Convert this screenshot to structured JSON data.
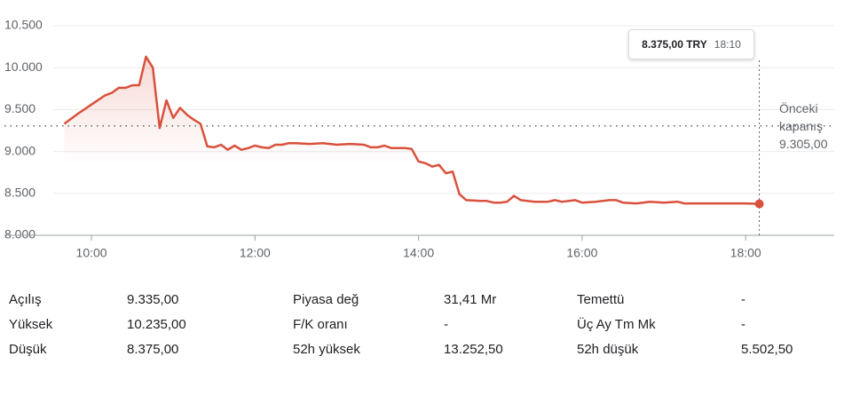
{
  "chart_data": {
    "type": "line",
    "color": "#d9513d",
    "x": [
      "09:40",
      "09:50",
      "10:00",
      "10:10",
      "10:15",
      "10:20",
      "10:25",
      "10:30",
      "10:35",
      "10:40",
      "10:45",
      "10:50",
      "10:55",
      "11:00",
      "11:05",
      "11:10",
      "11:15",
      "11:20",
      "11:25",
      "11:30",
      "11:35",
      "11:40",
      "11:45",
      "11:50",
      "11:55",
      "12:00",
      "12:05",
      "12:10",
      "12:15",
      "12:20",
      "12:25",
      "12:30",
      "12:40",
      "12:50",
      "13:00",
      "13:10",
      "13:20",
      "13:25",
      "13:30",
      "13:35",
      "13:40",
      "13:50",
      "13:55",
      "14:00",
      "14:05",
      "14:10",
      "14:15",
      "14:20",
      "14:25",
      "14:30",
      "14:35",
      "14:45",
      "14:50",
      "14:55",
      "15:00",
      "15:05",
      "15:10",
      "15:15",
      "15:25",
      "15:35",
      "15:40",
      "15:45",
      "15:55",
      "16:00",
      "16:10",
      "16:20",
      "16:25",
      "16:30",
      "16:40",
      "16:50",
      "17:00",
      "17:10",
      "17:15",
      "17:30",
      "17:45",
      "18:00",
      "18:10"
    ],
    "values": [
      9330,
      9450,
      9560,
      9670,
      9700,
      9760,
      9760,
      9790,
      9790,
      10130,
      10000,
      9280,
      9610,
      9400,
      9520,
      9440,
      9380,
      9330,
      9060,
      9050,
      9080,
      9020,
      9070,
      9020,
      9040,
      9070,
      9050,
      9040,
      9080,
      9080,
      9100,
      9100,
      9090,
      9100,
      9080,
      9090,
      9080,
      9050,
      9050,
      9070,
      9040,
      9040,
      9030,
      8880,
      8860,
      8820,
      8840,
      8740,
      8760,
      8490,
      8420,
      8410,
      8410,
      8390,
      8390,
      8400,
      8470,
      8420,
      8400,
      8400,
      8420,
      8400,
      8420,
      8390,
      8400,
      8420,
      8420,
      8390,
      8380,
      8400,
      8390,
      8400,
      8380,
      8380,
      8380,
      8380,
      8375
    ],
    "xlim": [
      "09:30",
      "19:05"
    ],
    "xticks": [
      "10:00",
      "12:00",
      "14:00",
      "16:00",
      "18:00"
    ],
    "ylim": [
      8000,
      10500
    ],
    "yticks": [
      {
        "value": 8000,
        "label": "8.000"
      },
      {
        "value": 8500,
        "label": "8.500"
      },
      {
        "value": 9000,
        "label": "9.000"
      },
      {
        "value": 9500,
        "label": "9.500"
      },
      {
        "value": 10000,
        "label": "10.000"
      },
      {
        "value": 10500,
        "label": "10.500"
      }
    ],
    "grid": true,
    "previous_close": {
      "label": "Önceki kapanış",
      "value": 9305,
      "value_label": "9.305,00"
    },
    "tooltip": {
      "value": 8375,
      "value_label": "8.375,00 TRY",
      "x": "18:10"
    }
  },
  "stats": {
    "rows": [
      [
        "Açılış",
        "9.335,00",
        "Piyasa değ",
        "31,41 Mr",
        "Temettü",
        "-"
      ],
      [
        "Yüksek",
        "10.235,00",
        "F/K oranı",
        "-",
        "Üç Ay Tm Mk",
        "-"
      ],
      [
        "Düşük",
        "8.375,00",
        "52h yüksek",
        "13.252,50",
        "52h düşük",
        "5.502,50"
      ]
    ]
  }
}
